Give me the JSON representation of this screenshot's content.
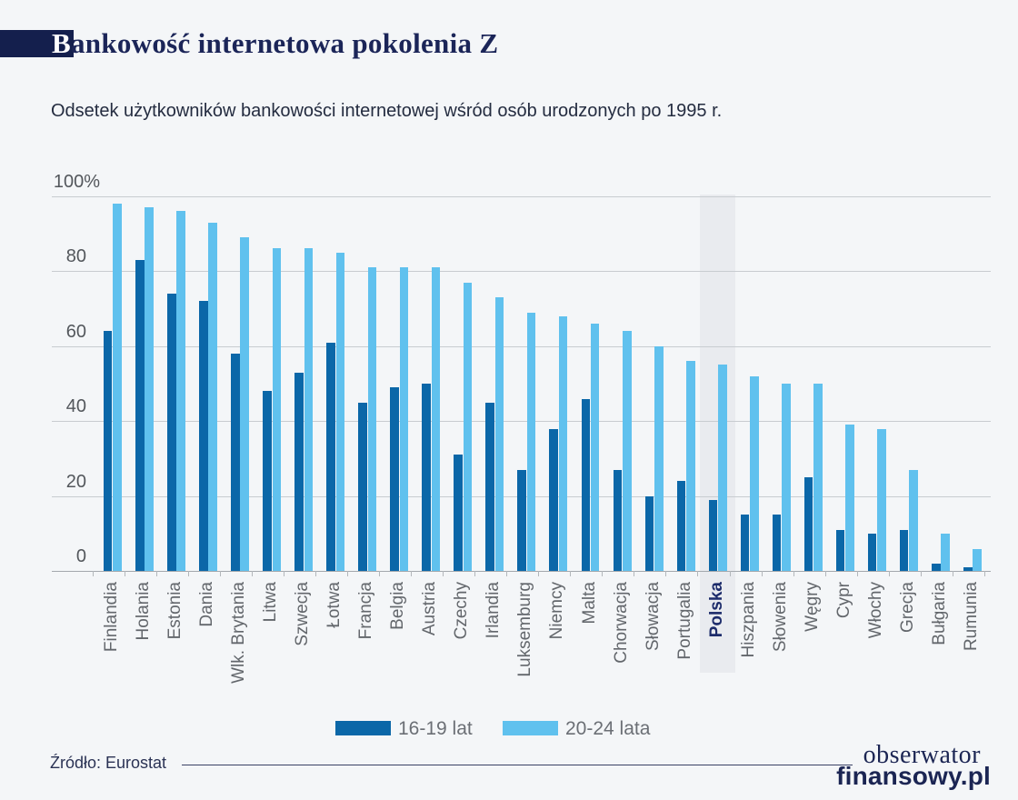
{
  "title": "Bankowość internetowa pokolenia Z",
  "subtitle": "Odsetek użytkowników bankowości internetowej wśród osób urodzonych po 1995 r.",
  "source": "Źródło: Eurostat",
  "logo": {
    "line1": "obserwator",
    "line2": "finansowy.pl"
  },
  "legend": [
    {
      "label": "16-19 lat",
      "color": "#0b67a8"
    },
    {
      "label": "20-24 lata",
      "color": "#60c1ee"
    }
  ],
  "colors": {
    "background": "#f4f6f8",
    "title_navy": "#1b2558",
    "accent_box": "#141f4d",
    "dark_bar": "#0b67a8",
    "light_bar": "#60c1ee",
    "highlight_band": "#e9ebef",
    "gridline": "#c8ccd0"
  },
  "chart_data": {
    "type": "bar",
    "title": "Bankowość internetowa pokolenia Z",
    "subtitle": "Odsetek użytkowników bankowości internetowej wśród osób urodzonych po 1995 r.",
    "xlabel": "",
    "ylabel": "%",
    "ylim": [
      0,
      100
    ],
    "yticks": [
      0,
      20,
      40,
      60,
      80,
      100
    ],
    "ytick_labels": [
      "0",
      "20",
      "40",
      "60",
      "80",
      "100%"
    ],
    "grid": true,
    "legend_position": "bottom",
    "categories": [
      "Finlandia",
      "Holania",
      "Estonia",
      "Dania",
      "Wlk. Brytania",
      "Litwa",
      "Szwecja",
      "Łotwa",
      "Francja",
      "Belgia",
      "Austria",
      "Czechy",
      "Irlandia",
      "Luksemburg",
      "Niemcy",
      "Malta",
      "Chorwacja",
      "Słowacja",
      "Portugalia",
      "Polska",
      "Hiszpania",
      "Słowenia",
      "Węgry",
      "Cypr",
      "Włochy",
      "Grecja",
      "Bułgaria",
      "Rumunia"
    ],
    "series": [
      {
        "name": "16-19 lat",
        "color": "#0b67a8",
        "values": [
          64,
          83,
          74,
          72,
          58,
          48,
          53,
          61,
          45,
          49,
          50,
          31,
          45,
          27,
          38,
          46,
          27,
          20,
          24,
          19,
          15,
          15,
          25,
          11,
          10,
          11,
          2,
          1
        ]
      },
      {
        "name": "20-24 lata",
        "color": "#60c1ee",
        "values": [
          98,
          97,
          96,
          93,
          89,
          86,
          86,
          85,
          81,
          81,
          81,
          77,
          73,
          69,
          68,
          66,
          64,
          60,
          56,
          55,
          52,
          50,
          50,
          39,
          38,
          27,
          10,
          6
        ]
      }
    ],
    "highlight": {
      "category": "Polska",
      "band_color": "#e9ebef"
    }
  }
}
